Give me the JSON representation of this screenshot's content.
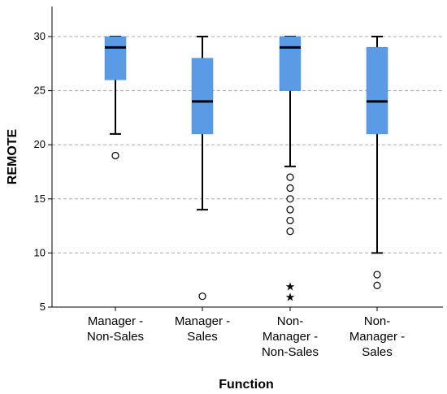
{
  "chart_data": {
    "type": "boxplot",
    "xlabel": "Function",
    "ylabel": "REMOTE",
    "ylim": [
      5,
      30
    ],
    "yticks": [
      5,
      10,
      15,
      20,
      25,
      30
    ],
    "grid": true,
    "box_color": "#5b9be6",
    "categories": [
      {
        "lines": [
          "Manager -",
          "Non-Sales"
        ]
      },
      {
        "lines": [
          "Manager -",
          "Sales"
        ]
      },
      {
        "lines": [
          "Non-",
          "Manager -",
          "Non-Sales"
        ]
      },
      {
        "lines": [
          "Non-",
          "Manager -",
          "Sales"
        ]
      }
    ],
    "boxes": [
      {
        "whisker_low": 21,
        "q1": 26,
        "median": 29,
        "q3": 30,
        "whisker_high": 30,
        "outliers": [
          19
        ],
        "extremes": []
      },
      {
        "whisker_low": 14,
        "q1": 21,
        "median": 24,
        "q3": 28,
        "whisker_high": 30,
        "outliers": [
          6
        ],
        "extremes": []
      },
      {
        "whisker_low": 18,
        "q1": 25,
        "median": 29,
        "q3": 30,
        "whisker_high": 30,
        "outliers": [
          17,
          16,
          15,
          14,
          13,
          12
        ],
        "extremes": [
          7,
          6
        ]
      },
      {
        "whisker_low": 10,
        "q1": 21,
        "median": 24,
        "q3": 29,
        "whisker_high": 30,
        "outliers": [
          8,
          7
        ],
        "extremes": []
      }
    ]
  }
}
